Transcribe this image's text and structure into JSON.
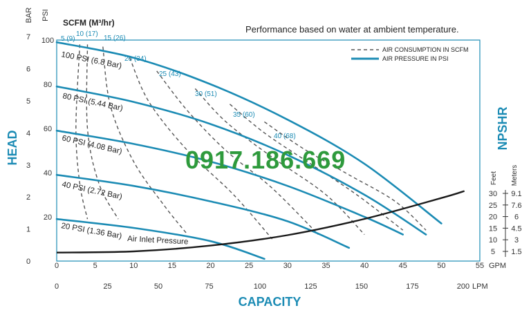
{
  "chart_data": {
    "type": "line",
    "note": "Performance based on water at ambient temperature.",
    "watermark": "0917.186.669",
    "xlabel": "CAPACITY",
    "ylabel_left": "HEAD",
    "ylabel_right": "NPSHR",
    "unit_bar": "BAR",
    "unit_psi": "PSI",
    "unit_gpm": "GPM",
    "unit_lpm": "LPM",
    "npshr_unit_feet": "Feet",
    "npshr_unit_meters": "Meters",
    "scfm_header": "SCFM (M³/hr)",
    "legend": {
      "air_consumption": "AIR CONSUMPTION IN SCFM",
      "air_pressure": "AIR PRESSURE IN PSI"
    },
    "colors": {
      "pressure": "#1b8bb4",
      "consumption": "#555555",
      "npshr": "#1a1a1a",
      "accent": "#1b8bb4",
      "watermark": "#2e9a3c"
    },
    "gpm_ticks": [
      "0",
      "5",
      "10",
      "15",
      "20",
      "25",
      "30",
      "35",
      "40",
      "45",
      "50",
      "55"
    ],
    "lpm_ticks": [
      "0",
      "25",
      "50",
      "75",
      "100",
      "125",
      "150",
      "175",
      "200"
    ],
    "bar_ticks": [
      "0",
      "1",
      "2",
      "3",
      "4",
      "5",
      "6",
      "7"
    ],
    "psi_ticks": [
      "20",
      "40",
      "60",
      "80",
      "100"
    ],
    "npshr_feet_ticks": [
      "5",
      "10",
      "15",
      "20",
      "25",
      "30"
    ],
    "npshr_meter_ticks": [
      "1.5",
      "3",
      "4.5",
      "6",
      "7.6",
      "9.1"
    ],
    "xlim_gpm": [
      0,
      55
    ],
    "ylim_psi": [
      0,
      100
    ],
    "air_pressure_curves": [
      {
        "label": "100 PSI (6.8 Bar)",
        "psi": 100,
        "points": [
          [
            0,
            99
          ],
          [
            10,
            92
          ],
          [
            20,
            80
          ],
          [
            30,
            64
          ],
          [
            40,
            44
          ],
          [
            50,
            17
          ]
        ]
      },
      {
        "label": "80 PSI (5.44 Bar)",
        "psi": 80,
        "points": [
          [
            0,
            79
          ],
          [
            10,
            72
          ],
          [
            20,
            62
          ],
          [
            30,
            48
          ],
          [
            40,
            30
          ],
          [
            48,
            12
          ]
        ]
      },
      {
        "label": "60 PSI (4.08 Bar)",
        "psi": 60,
        "points": [
          [
            0,
            59
          ],
          [
            10,
            53
          ],
          [
            20,
            45
          ],
          [
            30,
            34
          ],
          [
            40,
            20
          ],
          [
            45,
            12
          ]
        ]
      },
      {
        "label": "40 PSI (2.72 Bar)",
        "psi": 40,
        "points": [
          [
            0,
            39
          ],
          [
            10,
            34
          ],
          [
            20,
            27
          ],
          [
            30,
            18
          ],
          [
            38,
            6
          ]
        ]
      },
      {
        "label": "20 PSI (1.36 Bar)",
        "psi": 20,
        "points": [
          [
            0,
            19
          ],
          [
            10,
            15
          ],
          [
            20,
            9
          ],
          [
            27,
            1
          ]
        ]
      }
    ],
    "air_consumption_curves": [
      {
        "label": "5 (9)",
        "points": [
          [
            3,
            98
          ],
          [
            2.5,
            60
          ],
          [
            3,
            35
          ],
          [
            4,
            19
          ]
        ]
      },
      {
        "label": "10 (17)",
        "points": [
          [
            4,
            98
          ],
          [
            4,
            60
          ],
          [
            5.5,
            35
          ],
          [
            8,
            19
          ]
        ]
      },
      {
        "label": "15 (26)",
        "points": [
          [
            6,
            97
          ],
          [
            7,
            70
          ],
          [
            10,
            45
          ],
          [
            14,
            25
          ],
          [
            17,
            12
          ]
        ]
      },
      {
        "label": "20 (34)",
        "points": [
          [
            9.5,
            92
          ],
          [
            12,
            72
          ],
          [
            17,
            50
          ],
          [
            23,
            30
          ],
          [
            28,
            10
          ]
        ]
      },
      {
        "label": "25 (43)",
        "points": [
          [
            13,
            86
          ],
          [
            17,
            68
          ],
          [
            22,
            50
          ],
          [
            28,
            33
          ],
          [
            34,
            12
          ]
        ]
      },
      {
        "label": "30 (51)",
        "points": [
          [
            18,
            78
          ],
          [
            22,
            63
          ],
          [
            28,
            47
          ],
          [
            35,
            30
          ],
          [
            40,
            12
          ]
        ]
      },
      {
        "label": "35 (60)",
        "points": [
          [
            22.5,
            71
          ],
          [
            27,
            58
          ],
          [
            33,
            44
          ],
          [
            39,
            30
          ],
          [
            45,
            14
          ]
        ]
      },
      {
        "label": "40 (68)",
        "points": [
          [
            27,
            63
          ],
          [
            32,
            51
          ],
          [
            38,
            39
          ],
          [
            44,
            27
          ],
          [
            48,
            14
          ]
        ]
      }
    ],
    "air_inlet_pressure_label": "Air Inlet Pressure",
    "npshr_curve": {
      "points": [
        [
          0,
          4.5
        ],
        [
          10,
          5
        ],
        [
          20,
          7.5
        ],
        [
          30,
          12
        ],
        [
          40,
          19
        ],
        [
          50,
          28
        ],
        [
          53,
          31
        ]
      ]
    }
  }
}
